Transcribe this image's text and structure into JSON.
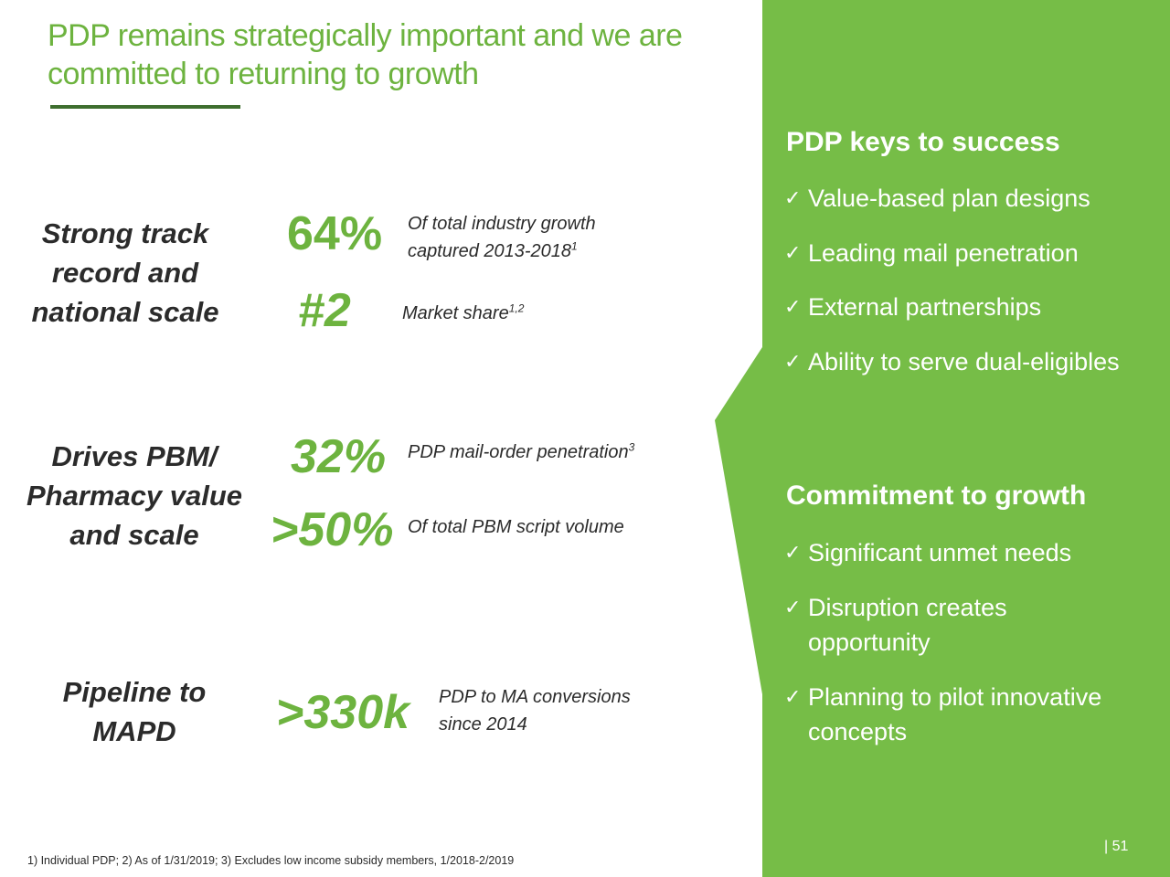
{
  "title_line1": "PDP remains strategically important and we are",
  "title_line2": "committed to returning to growth",
  "rows": [
    {
      "label_lines": [
        "Strong track",
        "record and",
        "national scale"
      ],
      "metrics": [
        {
          "value": "64%",
          "desc_lines": [
            "Of total industry growth",
            "captured 2013-2018"
          ],
          "sup": "1"
        },
        {
          "value": "#2",
          "desc_lines": [
            "Market share"
          ],
          "sup": "1,2"
        }
      ]
    },
    {
      "label_lines": [
        "Drives PBM/",
        "Pharmacy value",
        "and scale"
      ],
      "metrics": [
        {
          "value": "32%",
          "desc_lines": [
            "PDP mail-order penetration"
          ],
          "sup": "3"
        },
        {
          "value": ">50%",
          "desc_lines": [
            "Of total PBM script volume"
          ],
          "sup": ""
        }
      ]
    },
    {
      "label_lines": [
        "Pipeline to",
        "MAPD"
      ],
      "metrics": [
        {
          "value": ">330k",
          "desc_lines": [
            "PDP to MA conversions",
            "since 2014"
          ],
          "sup": ""
        }
      ]
    }
  ],
  "keys": {
    "heading": "PDP keys to success",
    "items": [
      "Value-based plan designs",
      "Leading mail penetration",
      "External partnerships",
      "Ability to serve dual-eligibles"
    ]
  },
  "commitment": {
    "heading": "Commitment to growth",
    "items": [
      [
        "Significant unmet needs"
      ],
      [
        "Disruption creates",
        "opportunity"
      ],
      [
        "Planning to pilot innovative",
        "concepts"
      ]
    ]
  },
  "check_glyph": "✓",
  "footnote": "1) Individual PDP; 2) As of 1/31/2019; 3) Excludes low income subsidy members, 1/2018-2/2019",
  "page_number": "| 51",
  "colors": {
    "accent_green": "#6DB33F",
    "panel_green": "#76BD47",
    "dark_green": "#3E6E2E",
    "text": "#2B2B2B"
  }
}
